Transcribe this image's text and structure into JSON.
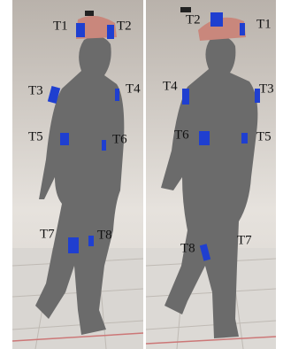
{
  "panels": [
    {
      "labels": [
        "T1",
        "T2",
        "T3",
        "T4",
        "T5",
        "T6",
        "T7",
        "T8"
      ]
    },
    {
      "labels": [
        "T2",
        "T1",
        "T4",
        "T3",
        "T6",
        "T5",
        "T8",
        "T7"
      ]
    }
  ]
}
